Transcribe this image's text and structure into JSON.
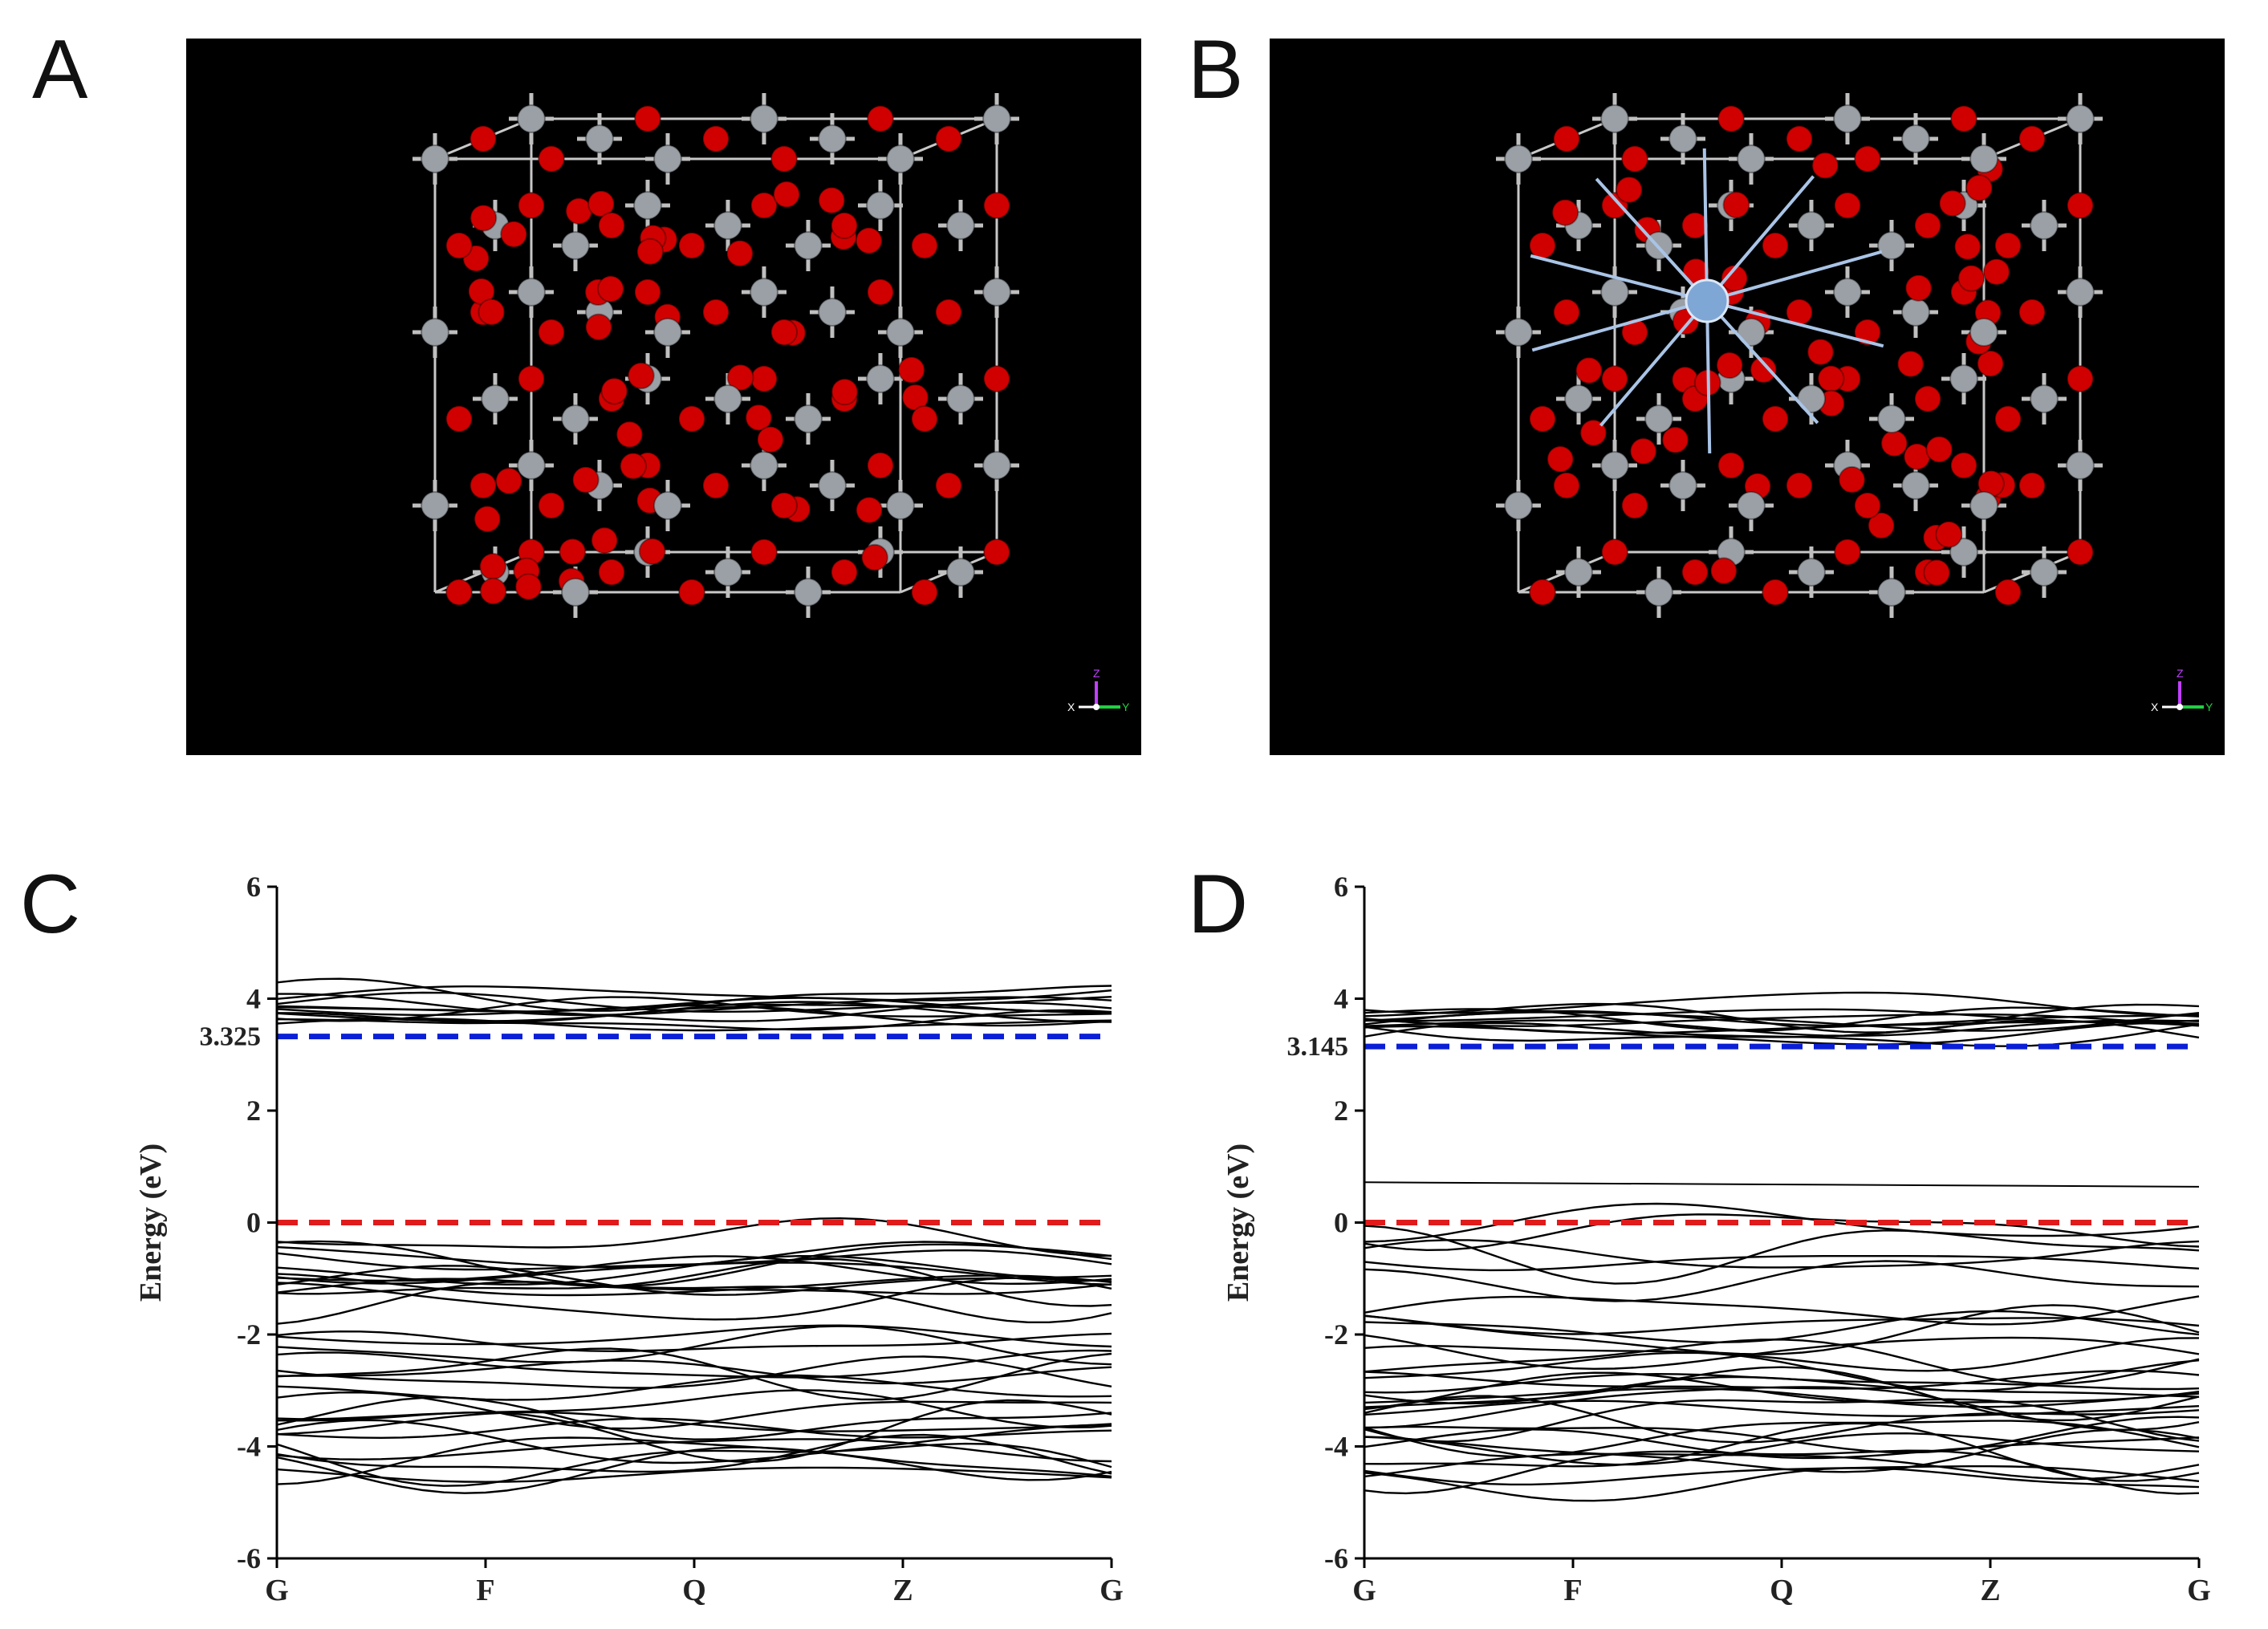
{
  "panels": {
    "A": {
      "label": "A",
      "axes_glyph": {
        "z": "Z",
        "x": "X",
        "y": "Y"
      }
    },
    "B": {
      "label": "B",
      "axes_glyph": {
        "z": "Z",
        "x": "X",
        "y": "Y"
      }
    },
    "C": {
      "label": "C"
    },
    "D": {
      "label": "D"
    }
  },
  "colors": {
    "oxygen": "#d10000",
    "titanium": "#9aa0a6",
    "dopant": "#7fa7d6",
    "bond": "#c8c8c8",
    "cbm_line": "#0a1fd6",
    "vbm_line": "#e01b1b",
    "band": "#000000"
  },
  "chart_data": [
    {
      "type": "line",
      "panel": "C",
      "ylabel": "Energy (eV)",
      "ylim": [
        -6,
        6
      ],
      "yticks": [
        "6",
        "4",
        "2",
        "0",
        "-2",
        "-4",
        "-6"
      ],
      "categories": [
        "G",
        "F",
        "Q",
        "Z",
        "G"
      ],
      "reference_lines": [
        {
          "value": 3.325,
          "label": "3.325",
          "color": "#0a1fd6",
          "style": "dashed"
        },
        {
          "value": 0,
          "label": "0",
          "color": "#e01b1b",
          "style": "dashed"
        }
      ],
      "conduction_band": {
        "min": 3.325,
        "max": 4.15
      },
      "valence_band": {
        "min": -4.75,
        "max": -0.05
      }
    },
    {
      "type": "line",
      "panel": "D",
      "ylabel": "Energy (eV)",
      "ylim": [
        -6,
        6
      ],
      "yticks": [
        "6",
        "4",
        "2",
        "0",
        "-2",
        "-4",
        "-6"
      ],
      "categories": [
        "G",
        "F",
        "Q",
        "Z",
        "G"
      ],
      "reference_lines": [
        {
          "value": 3.145,
          "label": "3.145",
          "color": "#0a1fd6",
          "style": "dashed"
        },
        {
          "value": 0,
          "label": "0",
          "color": "#e01b1b",
          "style": "dashed"
        }
      ],
      "conduction_band": {
        "min": 3.145,
        "max": 4.0
      },
      "impurity_band": {
        "value": 0.72
      },
      "valence_band": {
        "min": -5.0,
        "max": 0.25
      }
    }
  ]
}
